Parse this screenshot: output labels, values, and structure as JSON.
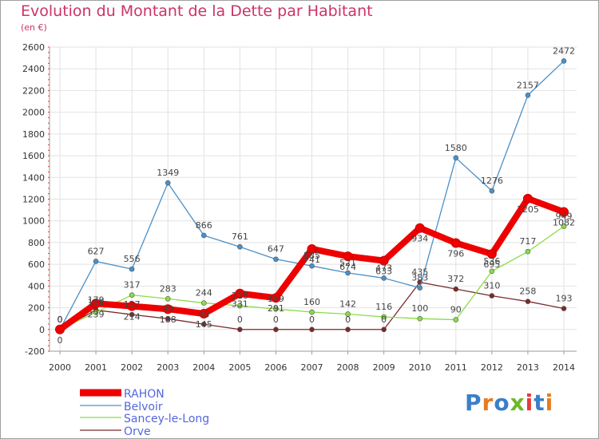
{
  "title": "Evolution du Montant de la Dette par Habitant",
  "subtitle": "(en €)",
  "logo_text": "Proxiti",
  "logo_colors": [
    "#3a7fc8",
    "#e87a1e",
    "#3a7fc8",
    "#6bb82a",
    "#e83a3a",
    "#3a7fc8",
    "#e87a1e"
  ],
  "chart_data": {
    "type": "line",
    "x": [
      "2000",
      "2001",
      "2002",
      "2003",
      "2004",
      "2005",
      "2006",
      "2007",
      "2008",
      "2009",
      "2010",
      "2011",
      "2012",
      "2013",
      "2014"
    ],
    "ylim": [
      -200,
      2600
    ],
    "yticks": [
      -200,
      0,
      200,
      400,
      600,
      800,
      1000,
      1200,
      1400,
      1600,
      1800,
      2000,
      2200,
      2400,
      2600
    ],
    "grid": true,
    "legend_position": "bottom-left",
    "series": [
      {
        "name": "RAHON",
        "color": "#ee0000",
        "values": [
          0,
          239,
          214,
          188,
          145,
          331,
          291,
          741,
          674,
          633,
          934,
          796,
          695,
          1205,
          1082
        ]
      },
      {
        "name": "Belvoir",
        "color": "#4a90c8",
        "values": [
          0,
          627,
          556,
          1349,
          866,
          761,
          647,
          585,
          521,
          473,
          383,
          1580,
          1276,
          2157,
          2472
        ]
      },
      {
        "name": "Sancey-le-Long",
        "color": "#88dd44",
        "values": [
          0,
          158,
          317,
          283,
          244,
          218,
          189,
          160,
          142,
          116,
          100,
          90,
          536,
          717,
          949
        ]
      },
      {
        "name": "Orve",
        "color": "#7a2a2a",
        "values": [
          0,
          179,
          137,
          99,
          48,
          0,
          0,
          0,
          0,
          0,
          435,
          372,
          310,
          258,
          193
        ]
      }
    ]
  }
}
